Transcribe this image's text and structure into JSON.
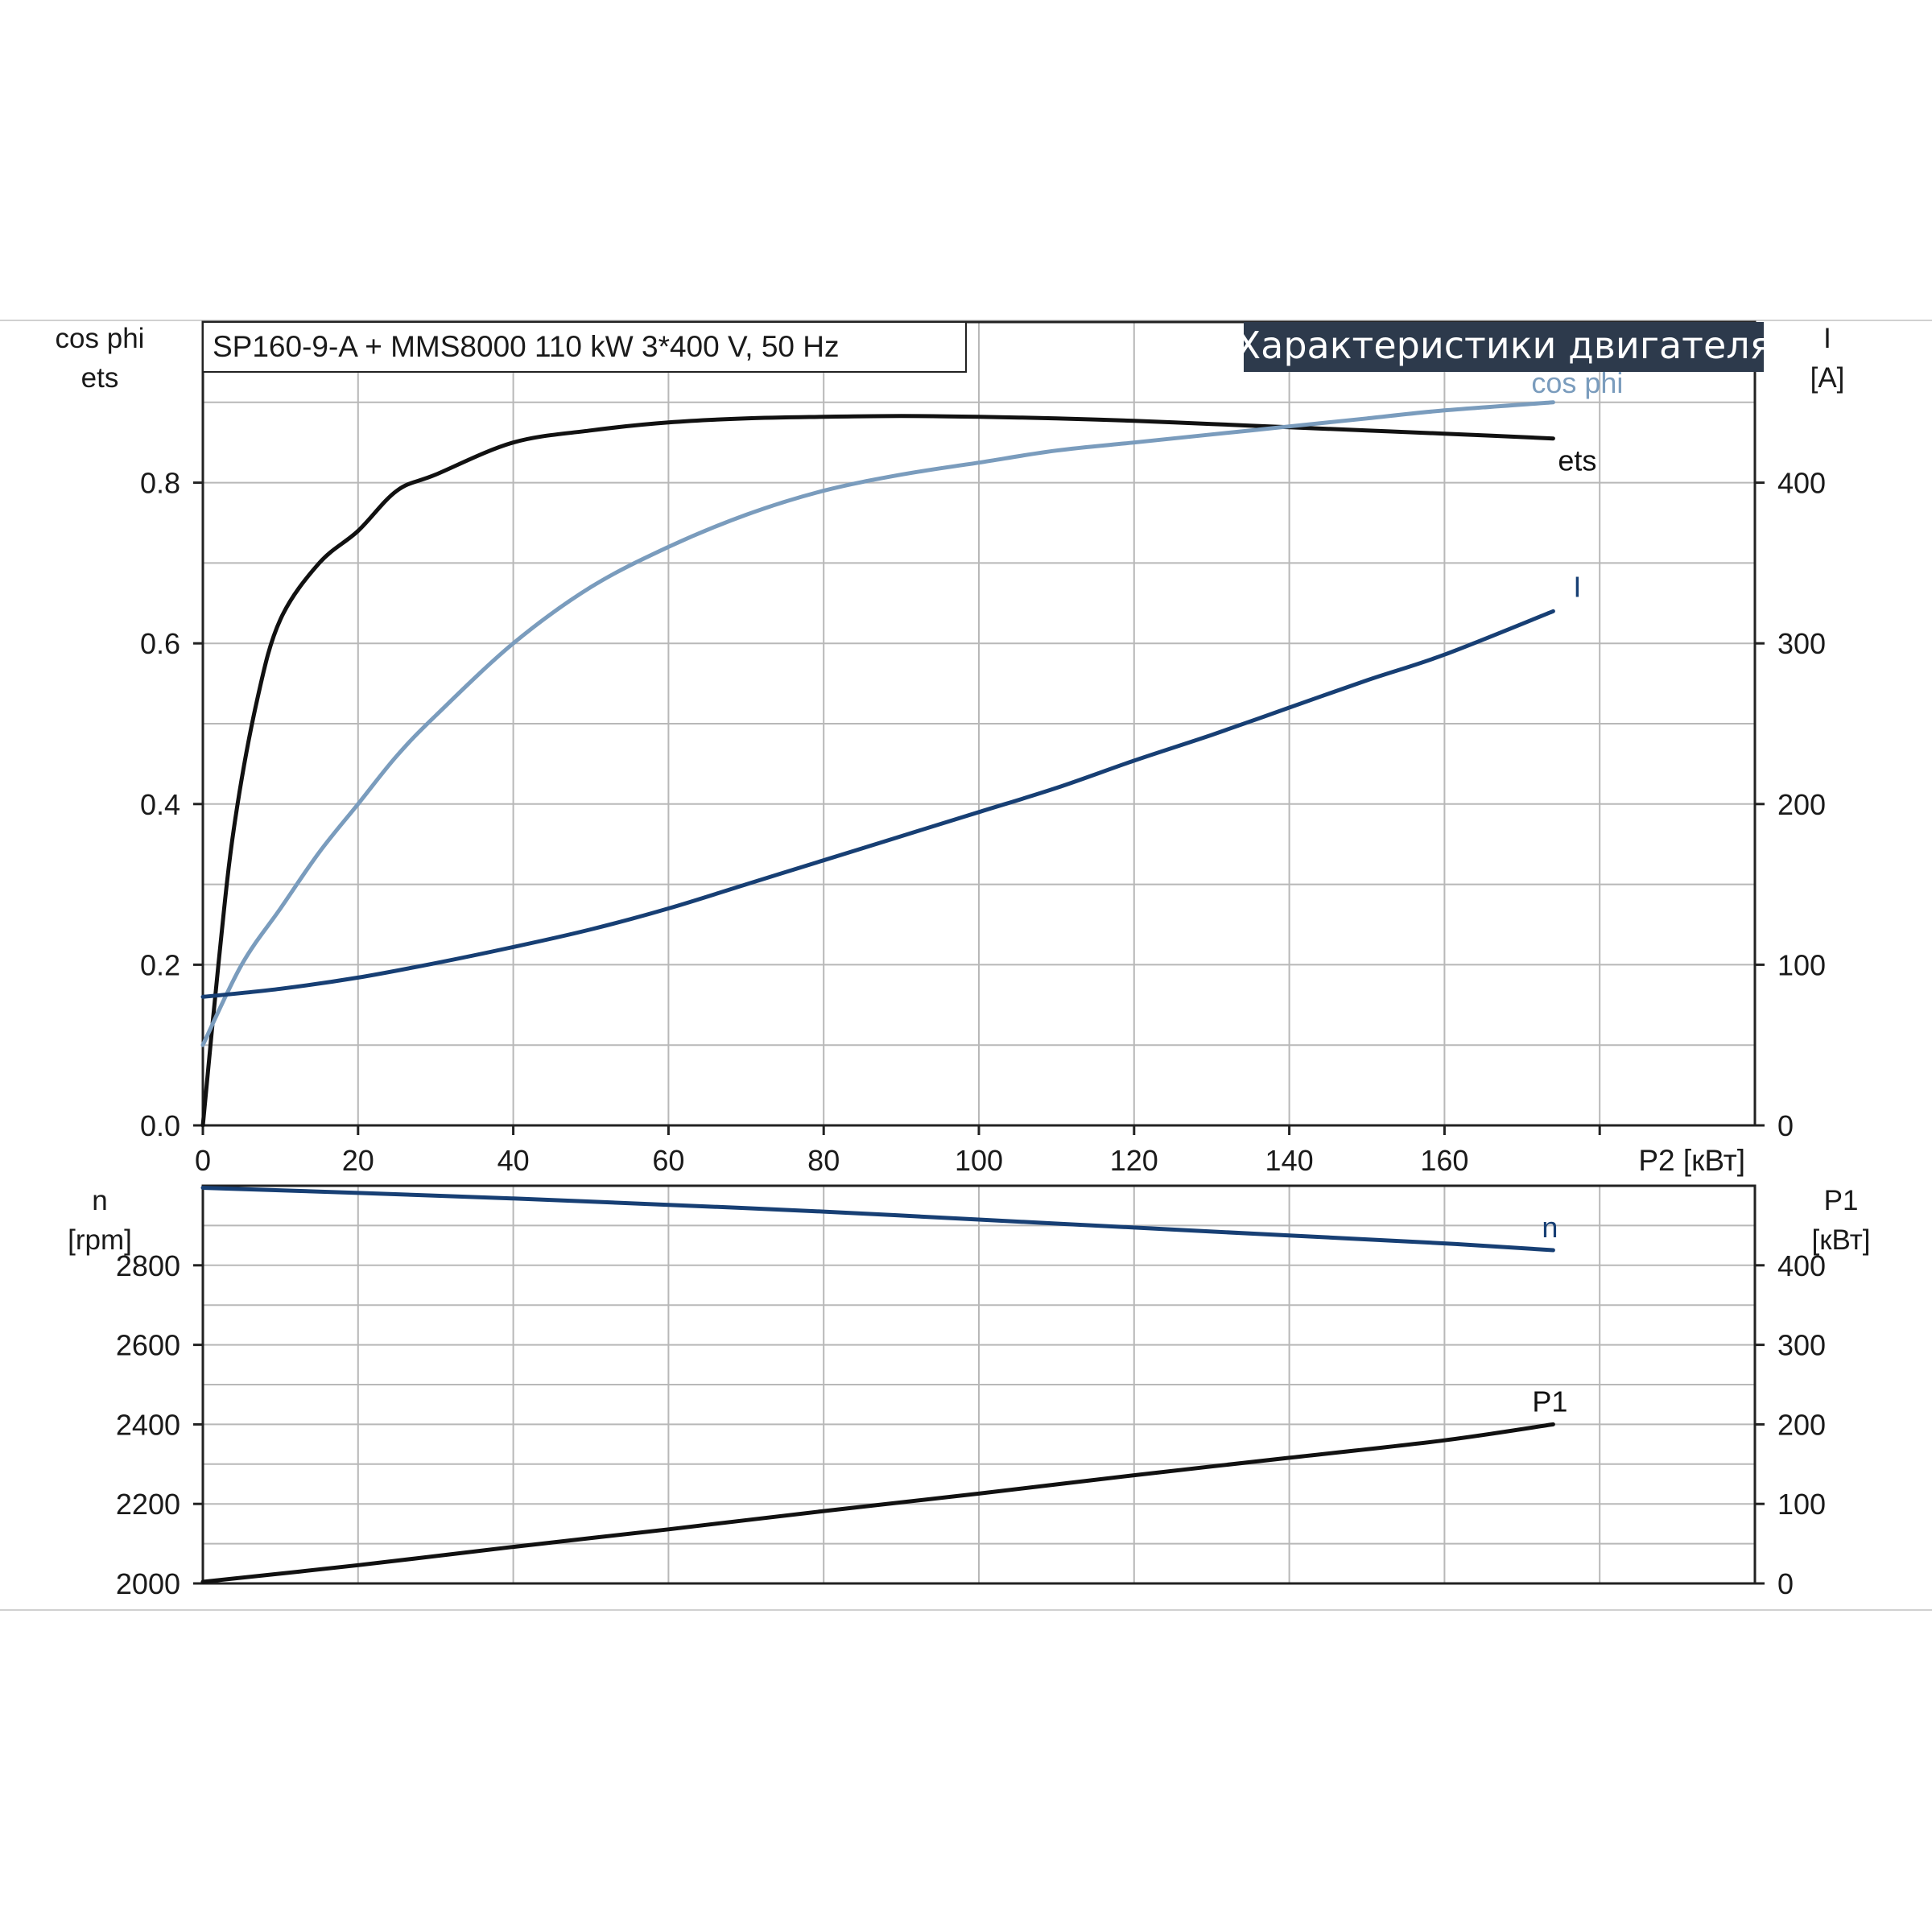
{
  "header": {
    "model": "SP160-9-A + MMS8000   110 kW   3*400 V, 50 Hz",
    "title": "Характеристики двигателя"
  },
  "colors": {
    "ets": "#111111",
    "cos_phi": "#7a9cbd",
    "current": "#173f74",
    "speed": "#173f74",
    "p1": "#111111",
    "title_bg": "#2d3a4c",
    "grid": "#b8b8b8"
  },
  "chart_data": [
    {
      "type": "line",
      "x_axis": {
        "label": "P2 [кВт]",
        "ticks": [
          "0",
          "20",
          "40",
          "60",
          "80",
          "100",
          "120",
          "140",
          "160"
        ],
        "range": [
          0,
          200
        ]
      },
      "y_left": {
        "label_line1": "cos phi",
        "label_line2": "ets",
        "ticks": [
          "0.0",
          "0.2",
          "0.4",
          "0.6",
          "0.8"
        ],
        "range": [
          0,
          1.0
        ]
      },
      "y_right": {
        "label_line1": "I",
        "label_line2": "[A]",
        "ticks": [
          "0",
          "100",
          "200",
          "300",
          "400"
        ],
        "range": [
          0,
          500
        ]
      },
      "grid": true,
      "series": [
        {
          "name": "ets",
          "axis": "left",
          "x": [
            0,
            2,
            4,
            7,
            10,
            15,
            20,
            25,
            30,
            40,
            50,
            60,
            70,
            80,
            90,
            100,
            110,
            120,
            130,
            140,
            150,
            160,
            174
          ],
          "y": [
            0.0,
            0.2,
            0.37,
            0.53,
            0.63,
            0.7,
            0.74,
            0.79,
            0.81,
            0.85,
            0.865,
            0.875,
            0.88,
            0.882,
            0.883,
            0.882,
            0.88,
            0.877,
            0.873,
            0.869,
            0.865,
            0.861,
            0.855
          ]
        },
        {
          "name": "cos phi",
          "axis": "left",
          "x": [
            0,
            5,
            10,
            15,
            20,
            25,
            30,
            40,
            50,
            60,
            70,
            80,
            90,
            100,
            110,
            120,
            130,
            140,
            150,
            160,
            174
          ],
          "y": [
            0.1,
            0.2,
            0.27,
            0.34,
            0.4,
            0.46,
            0.51,
            0.6,
            0.67,
            0.72,
            0.76,
            0.79,
            0.81,
            0.825,
            0.84,
            0.85,
            0.86,
            0.87,
            0.88,
            0.89,
            0.9
          ]
        },
        {
          "name": "I",
          "axis": "right",
          "x": [
            0,
            10,
            20,
            30,
            40,
            50,
            60,
            70,
            80,
            90,
            100,
            110,
            120,
            130,
            140,
            150,
            160,
            174
          ],
          "y": [
            80,
            85,
            92,
            101,
            111,
            122,
            135,
            150,
            165,
            180,
            195,
            210,
            227,
            243,
            260,
            277,
            293,
            320
          ]
        }
      ]
    },
    {
      "type": "line",
      "x_axis": {
        "range": [
          0,
          200
        ]
      },
      "y_left": {
        "label_line1": "n",
        "label_line2": "[rpm]",
        "ticks": [
          "2000",
          "2200",
          "2400",
          "2600",
          "2800"
        ],
        "range": [
          2000,
          3000
        ]
      },
      "y_right": {
        "label_line1": "P1",
        "label_line2": "[кВт]",
        "ticks": [
          "0",
          "100",
          "200",
          "300",
          "400"
        ],
        "range": [
          0,
          500
        ]
      },
      "grid": true,
      "series": [
        {
          "name": "n",
          "axis": "left",
          "x": [
            0,
            20,
            40,
            60,
            80,
            100,
            120,
            140,
            160,
            174
          ],
          "y": [
            2995,
            2982,
            2968,
            2952,
            2935,
            2915,
            2895,
            2875,
            2855,
            2838
          ]
        },
        {
          "name": "P1",
          "axis": "right",
          "x": [
            0,
            20,
            40,
            60,
            80,
            100,
            120,
            140,
            160,
            174
          ],
          "y": [
            2,
            23,
            46,
            68,
            91,
            113,
            136,
            158,
            180,
            200
          ]
        }
      ]
    }
  ]
}
